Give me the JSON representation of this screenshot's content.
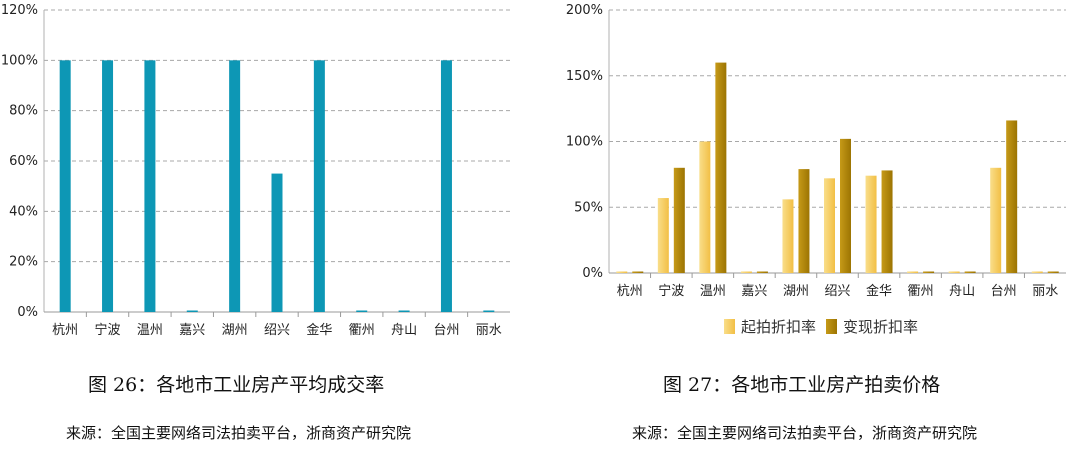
{
  "chart_data": [
    {
      "type": "bar",
      "categories": [
        "杭州",
        "宁波",
        "温州",
        "嘉兴",
        "湖州",
        "绍兴",
        "金华",
        "衢州",
        "舟山",
        "台州",
        "丽水"
      ],
      "series": [
        {
          "values": [
            100,
            100,
            100,
            0,
            100,
            55,
            100,
            0,
            0,
            100,
            0
          ]
        }
      ],
      "yticks": [
        "0%",
        "20%",
        "40%",
        "60%",
        "80%",
        "100%",
        "120%"
      ],
      "ylim": [
        0,
        120
      ],
      "grid": true,
      "colors": [
        "#0d97b5"
      ]
    },
    {
      "type": "bar",
      "categories": [
        "杭州",
        "宁波",
        "温州",
        "嘉兴",
        "湖州",
        "绍兴",
        "金华",
        "衢州",
        "舟山",
        "台州",
        "丽水"
      ],
      "series": [
        {
          "name": "起拍折扣率",
          "values": [
            0,
            57,
            100,
            0,
            56,
            72,
            74,
            0,
            0,
            80,
            0
          ]
        },
        {
          "name": "变现折扣率",
          "values": [
            0,
            80,
            160,
            0,
            79,
            102,
            78,
            0,
            0,
            116,
            0
          ]
        }
      ],
      "yticks": [
        "0%",
        "50%",
        "100%",
        "150%",
        "200%"
      ],
      "ylim": [
        0,
        200
      ],
      "grid": true,
      "legend": "bottom",
      "colors": [
        "#f5c964",
        "#b58a05"
      ]
    }
  ],
  "captions": {
    "left": "图 26：各地市工业房产平均成交率",
    "right": "图 27：各地市工业房产拍卖价格"
  },
  "sources": {
    "left": "来源：全国主要网络司法拍卖平台，浙商资产研究院",
    "right": "来源：全国主要网络司法拍卖平台，浙商资产研究院"
  }
}
